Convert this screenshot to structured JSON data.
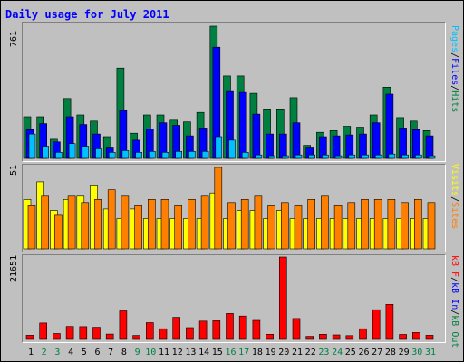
{
  "colors": {
    "background": "#c0c0c0",
    "title": "#0000ff",
    "hits": "#008040",
    "files": "#0000ff",
    "pages": "#00c0ff",
    "visits": "#ffff00",
    "sites": "#ff8000",
    "kbf": "#ff0000",
    "kbin": "#0000ff",
    "kbout": "#008040",
    "weekend_label": "#008040",
    "weekday_label": "#000000"
  },
  "chart_data": [
    {
      "type": "bar",
      "title": "Daily usage for July 2011",
      "ylabel_max": "761",
      "legend_label": "Pages / Files / Hits",
      "legend_parts": [
        "Pages",
        "/",
        "Files",
        "/",
        "Hits"
      ],
      "categories": [
        "1",
        "2",
        "3",
        "4",
        "5",
        "6",
        "7",
        "8",
        "9",
        "10",
        "11",
        "12",
        "13",
        "14",
        "15",
        "16",
        "17",
        "18",
        "19",
        "20",
        "21",
        "22",
        "23",
        "24",
        "25",
        "26",
        "27",
        "28",
        "29",
        "30",
        "31"
      ],
      "ylim": [
        0,
        761
      ],
      "series": [
        {
          "name": "Hits",
          "values": [
            240,
            240,
            110,
            345,
            250,
            215,
            125,
            520,
            145,
            250,
            250,
            220,
            210,
            265,
            761,
            475,
            475,
            375,
            285,
            285,
            350,
            75,
            150,
            160,
            185,
            180,
            250,
            410,
            235,
            215,
            160
          ]
        },
        {
          "name": "Files",
          "values": [
            165,
            200,
            95,
            240,
            195,
            140,
            65,
            275,
            105,
            170,
            205,
            190,
            130,
            175,
            640,
            385,
            380,
            255,
            140,
            140,
            205,
            65,
            125,
            130,
            135,
            140,
            205,
            370,
            175,
            165,
            130
          ]
        },
        {
          "name": "Pages",
          "values": [
            140,
            70,
            35,
            85,
            70,
            55,
            35,
            45,
            35,
            40,
            35,
            40,
            40,
            40,
            125,
            105,
            35,
            20,
            15,
            15,
            20,
            20,
            20,
            15,
            20,
            20,
            20,
            25,
            20,
            20,
            15
          ]
        }
      ]
    },
    {
      "type": "bar",
      "ylabel_max": "51",
      "legend_label": "Visits / Sites",
      "legend_parts": [
        "Visits",
        "/",
        "Sites"
      ],
      "ylim": [
        0,
        51
      ],
      "series": [
        {
          "name": "Visits",
          "values": [
            31,
            42,
            24,
            31,
            33,
            40,
            25,
            19,
            25,
            19,
            19,
            19,
            19,
            19,
            35,
            19,
            24,
            24,
            19,
            24,
            19,
            19,
            19,
            19,
            19,
            19,
            19,
            19,
            19,
            19,
            19
          ]
        },
        {
          "name": "Sites",
          "values": [
            27,
            33,
            21,
            33,
            29,
            31,
            37,
            33,
            27,
            31,
            31,
            27,
            31,
            33,
            51,
            29,
            31,
            33,
            27,
            29,
            27,
            31,
            33,
            27,
            29,
            31,
            31,
            31,
            29,
            31,
            29
          ]
        }
      ]
    },
    {
      "type": "bar",
      "ylabel_max": "21651",
      "legend_label": "kB F / kB In / kB Out",
      "legend_parts": [
        "kB F",
        "/",
        "kB In",
        "/",
        "kB Out"
      ],
      "ylim": [
        0,
        21651
      ],
      "series": [
        {
          "name": "kB F",
          "values": [
            1100,
            4300,
            1550,
            3400,
            3350,
            3200,
            1400,
            7500,
            1050,
            4400,
            2800,
            5800,
            3100,
            4800,
            4900,
            6800,
            6150,
            5000,
            1350,
            21651,
            5500,
            800,
            1350,
            1200,
            1000,
            2800,
            7800,
            9200,
            1300,
            1800,
            1100
          ]
        }
      ]
    }
  ]
}
